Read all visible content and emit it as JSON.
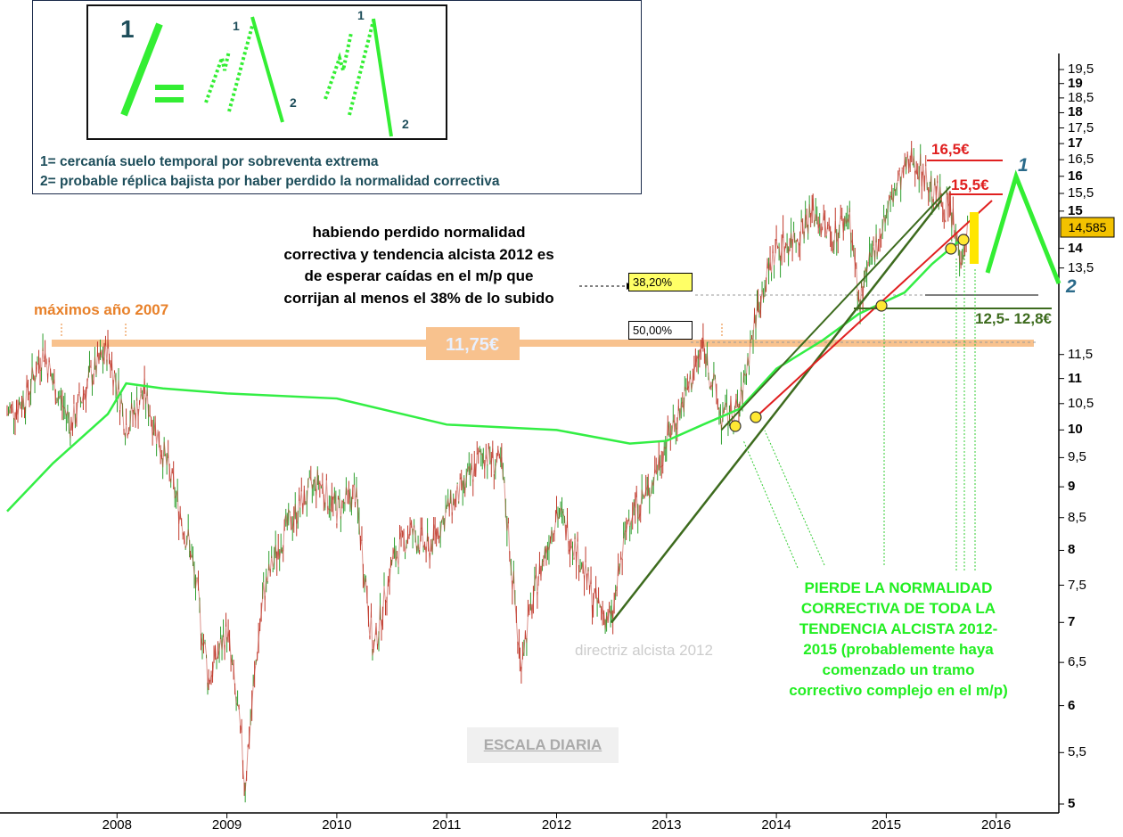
{
  "legend": {
    "line1": "1= cercanía suelo temporal por sobreventa extrema",
    "line2": "2= probable réplica bajista por haber perdido la normalidad correctiva",
    "label_1": "1",
    "label_2": "2"
  },
  "chart_data": {
    "type": "line",
    "title": "",
    "scale": "log",
    "ylim": [
      5,
      20
    ],
    "y_ticks": [
      "19,5",
      "19",
      "18,5",
      "18",
      "17,5",
      "17",
      "16,5",
      "16",
      "15,5",
      "15",
      "14",
      "13,5",
      "11,5",
      "11",
      "10,5",
      "10",
      "9,5",
      "9",
      "8,5",
      "8",
      "7,5",
      "7",
      "6,5",
      "6",
      "5,5",
      "5"
    ],
    "x_ticks": [
      "2008",
      "2009",
      "2010",
      "2011",
      "2012",
      "2013",
      "2014",
      "2015",
      "2016"
    ],
    "last_price_label": "14,585",
    "series": [
      {
        "kind": "price",
        "points": [
          [
            "2007-01",
            10.3
          ],
          [
            "2007-03",
            10.6
          ],
          [
            "2007-05",
            11.6
          ],
          [
            "2007-06",
            10.9
          ],
          [
            "2007-08",
            10.1
          ],
          [
            "2007-10",
            11.0
          ],
          [
            "2007-12",
            11.6
          ],
          [
            "2008-02",
            10.1
          ],
          [
            "2008-04",
            10.7
          ],
          [
            "2008-06",
            9.6
          ],
          [
            "2008-09",
            8.0
          ],
          [
            "2008-11",
            6.3
          ],
          [
            "2009-01",
            6.9
          ],
          [
            "2009-03",
            5.2
          ],
          [
            "2009-05",
            7.4
          ],
          [
            "2009-07",
            8.2
          ],
          [
            "2009-09",
            8.7
          ],
          [
            "2009-11",
            9.1
          ],
          [
            "2010-01",
            8.6
          ],
          [
            "2010-03",
            8.9
          ],
          [
            "2010-05",
            6.6
          ],
          [
            "2010-07",
            7.8
          ],
          [
            "2010-09",
            8.3
          ],
          [
            "2010-11",
            8.0
          ],
          [
            "2011-01",
            8.6
          ],
          [
            "2011-03",
            9.0
          ],
          [
            "2011-05",
            9.6
          ],
          [
            "2011-07",
            9.3
          ],
          [
            "2011-09",
            6.5
          ],
          [
            "2011-11",
            7.6
          ],
          [
            "2012-01",
            8.6
          ],
          [
            "2012-03",
            8.1
          ],
          [
            "2012-05",
            7.3
          ],
          [
            "2012-07",
            7.0
          ],
          [
            "2012-09",
            8.6
          ],
          [
            "2012-11",
            8.9
          ],
          [
            "2013-01",
            9.8
          ],
          [
            "2013-03",
            10.6
          ],
          [
            "2013-05",
            11.7
          ],
          [
            "2013-07",
            10.2
          ],
          [
            "2013-09",
            10.4
          ],
          [
            "2013-11",
            12.6
          ],
          [
            "2014-01",
            14.0
          ],
          [
            "2014-03",
            14.3
          ],
          [
            "2014-05",
            15.0
          ],
          [
            "2014-07",
            14.3
          ],
          [
            "2014-09",
            14.9
          ],
          [
            "2014-10",
            12.6
          ],
          [
            "2014-12",
            14.2
          ],
          [
            "2015-02",
            15.6
          ],
          [
            "2015-04",
            16.6
          ],
          [
            "2015-06",
            15.6
          ],
          [
            "2015-08",
            15.0
          ],
          [
            "2015-09",
            13.8
          ],
          [
            "2015-10",
            14.585
          ]
        ]
      },
      {
        "kind": "moving-average",
        "points": [
          [
            "2007-01",
            8.6
          ],
          [
            "2007-06",
            9.4
          ],
          [
            "2007-12",
            10.3
          ],
          [
            "2008-02",
            10.9
          ],
          [
            "2008-06",
            10.8
          ],
          [
            "2009-01",
            10.7
          ],
          [
            "2010-01",
            10.6
          ],
          [
            "2011-01",
            10.1
          ],
          [
            "2012-01",
            10.0
          ],
          [
            "2012-09",
            9.75
          ],
          [
            "2013-01",
            9.8
          ],
          [
            "2013-05",
            10.1
          ],
          [
            "2013-09",
            10.4
          ],
          [
            "2014-01",
            11.2
          ],
          [
            "2014-06",
            11.8
          ],
          [
            "2014-10",
            12.4
          ],
          [
            "2015-03",
            12.9
          ],
          [
            "2015-06",
            13.6
          ],
          [
            "2015-09",
            14.2
          ]
        ]
      },
      {
        "kind": "trendline-2012",
        "points": [
          [
            "2012-07",
            7.0
          ],
          [
            "2015-07",
            15.3
          ]
        ]
      },
      {
        "kind": "trendline-2013",
        "points": [
          [
            "2013-07",
            10.0
          ],
          [
            "2015-08",
            15.7
          ]
        ]
      }
    ]
  },
  "annotations": {
    "maximos": "máximos año 2007",
    "level_1175": "11,75€",
    "fib_382": "38,20%",
    "fib_50": "50,00%",
    "expectation": [
      "habiendo perdido normalidad",
      "correctiva y tendencia alcista 2012 es",
      "de esperar caídas en el m/p que",
      "corrijan al menos el 38% de lo subido"
    ],
    "level_165": "16,5€",
    "level_155": "15,5€",
    "target": "12,5- 12,8€",
    "marker_1": "1",
    "marker_2": "2",
    "directriz": "directriz alcista 2012",
    "escala": "ESCALA DIARIA",
    "pierde": [
      "PIERDE LA NORMALIDAD",
      "CORRECTIVA DE TODA LA",
      "TENDENCIA ALCISTA 2012-",
      "2015 (probablemente haya",
      "comenzado un tramo",
      "correctivo complejo en el m/p)"
    ]
  }
}
